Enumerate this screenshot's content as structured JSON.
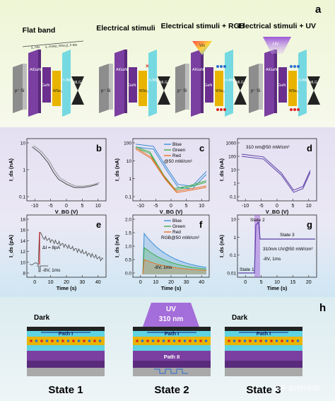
{
  "panel_a": {
    "letter": "a",
    "titles": [
      "Flat band",
      "Electrical stimuli",
      "Electrical stimuli + RGB",
      "Electrical stimuli + UV"
    ],
    "layer_labels": {
      "substrate": "p⁺ Si",
      "barrier": "AlGaN/ AlN",
      "gan": "GaN",
      "hbn": "h-BN",
      "wse2": "WSe₂",
      "mlg": "MLG"
    },
    "energy_labels": [
      "χ_AlN",
      "χ_GaN",
      "χ_WSe₂",
      "χ_h-BN"
    ],
    "vis_label": "Vis",
    "uv_label": "UV"
  },
  "panel_b": {
    "letter": "b",
    "chart_data": {
      "type": "line",
      "ylabel": "I_ds (nA)",
      "xlabel": "V_BG (V)",
      "x_ticks": [
        "-10",
        "-5",
        "0",
        "5",
        "10"
      ],
      "y_ticks": [
        "10",
        "1",
        "0.1"
      ],
      "yscale": "log",
      "series": [
        {
          "x": [
            -13,
            -10,
            -7,
            -5,
            -3,
            0,
            3,
            6,
            9,
            12
          ],
          "y": [
            9,
            5,
            2,
            0.8,
            0.4,
            0.25,
            0.18,
            0.18,
            0.2,
            0.25
          ]
        }
      ]
    }
  },
  "panel_c": {
    "letter": "c",
    "legend": [
      "Blue",
      "Green",
      "Red",
      "@50 mW/cm²"
    ],
    "chart_data": {
      "type": "line",
      "ylabel": "I_ds (nA)",
      "xlabel": "V_BG (V)",
      "x_ticks": [
        "-10",
        "-5",
        "0",
        "5",
        "10"
      ],
      "y_ticks": [
        "100",
        "10",
        "1",
        "0.1"
      ],
      "yscale": "log",
      "series": [
        {
          "name": "Blue",
          "color": "#3b8fd6"
        },
        {
          "name": "Green",
          "color": "#3fae49"
        },
        {
          "name": "Red",
          "color": "#e8732a"
        }
      ]
    }
  },
  "panel_d": {
    "letter": "d",
    "annotation": "310 nm@50 mW/cm²",
    "chart_data": {
      "type": "line",
      "ylabel": "I_ds (nA)",
      "xlabel": "V_BG (V)",
      "x_ticks": [
        "-10",
        "-5",
        "0",
        "5",
        "10"
      ],
      "y_ticks": [
        "1000",
        "100",
        "10",
        "1",
        "0.1"
      ],
      "yscale": "log"
    }
  },
  "panel_e": {
    "letter": "e",
    "annotation_delta": "ΔI = 8pA",
    "annotation_pulse": "-8V, 1ms",
    "chart_data": {
      "type": "line",
      "ylabel": "I_ds (pA)",
      "xlabel": "Time (s)",
      "x_ticks": [
        "0",
        "10",
        "20",
        "30",
        "40"
      ],
      "y_ticks": [
        "18",
        "16",
        "14",
        "12",
        "10",
        "8"
      ],
      "ylim": [
        7,
        18
      ]
    }
  },
  "panel_f": {
    "letter": "f",
    "legend": [
      "Blue",
      "Green",
      "Red",
      "RGB@50 mW/cm²"
    ],
    "annotation_pulse": "-8V, 1ms",
    "chart_data": {
      "type": "line",
      "ylabel": "I_ds (nA)",
      "xlabel": "Time (s)",
      "x_ticks": [
        "0",
        "10",
        "20",
        "30",
        "40"
      ],
      "y_ticks": [
        "2.0",
        "1.5",
        "1.0",
        "0.5",
        "0.0"
      ],
      "ylim": [
        0,
        2.0
      ]
    }
  },
  "panel_g": {
    "letter": "g",
    "state_labels": [
      "State 1",
      "State 2",
      "State 3"
    ],
    "annotation_light": "310nm UV@50 mW/cm²",
    "annotation_pulse": "-8V, 1ms",
    "chart_data": {
      "type": "line",
      "ylabel": "I_ds (nA)",
      "xlabel": "Time (s)",
      "x_ticks": [
        "0",
        "5",
        "10",
        "15",
        "20"
      ],
      "y_ticks": [
        "10",
        "1",
        "0.1",
        "0.01"
      ],
      "yscale": "log"
    }
  },
  "panel_h": {
    "letter": "h",
    "states": [
      {
        "name": "State 1",
        "light": "Dark",
        "paths": [
          "Path I"
        ]
      },
      {
        "name": "State 2",
        "light": "UV 310 nm",
        "paths": [
          "Path I",
          "Path II"
        ]
      },
      {
        "name": "State 3",
        "light": "Dark",
        "paths": [
          "Path I"
        ]
      }
    ],
    "watermark": "知乎 @托托科技"
  },
  "colors": {
    "purple": "#7a3fa0",
    "yellow": "#e9b400",
    "cyan": "#5fd3e0",
    "gray": "#9a9a9a",
    "bg_lavender": "#e7e4f2",
    "bg_teal": "#ddeef0"
  }
}
